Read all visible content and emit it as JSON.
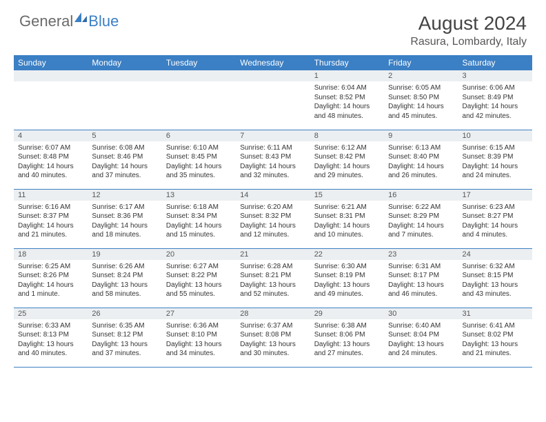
{
  "brand": {
    "part1": "General",
    "part2": "Blue"
  },
  "title": "August 2024",
  "location": "Rasura, Lombardy, Italy",
  "colors": {
    "header_bg": "#3b7fc4",
    "header_fg": "#ffffff",
    "daynum_bg": "#eceff1",
    "border": "#3b7fc4",
    "text": "#333333",
    "title_color": "#444444"
  },
  "weekdays": [
    "Sunday",
    "Monday",
    "Tuesday",
    "Wednesday",
    "Thursday",
    "Friday",
    "Saturday"
  ],
  "weeks": [
    [
      null,
      null,
      null,
      null,
      {
        "n": "1",
        "sr": "6:04 AM",
        "ss": "8:52 PM",
        "dl": "14 hours and 48 minutes."
      },
      {
        "n": "2",
        "sr": "6:05 AM",
        "ss": "8:50 PM",
        "dl": "14 hours and 45 minutes."
      },
      {
        "n": "3",
        "sr": "6:06 AM",
        "ss": "8:49 PM",
        "dl": "14 hours and 42 minutes."
      }
    ],
    [
      {
        "n": "4",
        "sr": "6:07 AM",
        "ss": "8:48 PM",
        "dl": "14 hours and 40 minutes."
      },
      {
        "n": "5",
        "sr": "6:08 AM",
        "ss": "8:46 PM",
        "dl": "14 hours and 37 minutes."
      },
      {
        "n": "6",
        "sr": "6:10 AM",
        "ss": "8:45 PM",
        "dl": "14 hours and 35 minutes."
      },
      {
        "n": "7",
        "sr": "6:11 AM",
        "ss": "8:43 PM",
        "dl": "14 hours and 32 minutes."
      },
      {
        "n": "8",
        "sr": "6:12 AM",
        "ss": "8:42 PM",
        "dl": "14 hours and 29 minutes."
      },
      {
        "n": "9",
        "sr": "6:13 AM",
        "ss": "8:40 PM",
        "dl": "14 hours and 26 minutes."
      },
      {
        "n": "10",
        "sr": "6:15 AM",
        "ss": "8:39 PM",
        "dl": "14 hours and 24 minutes."
      }
    ],
    [
      {
        "n": "11",
        "sr": "6:16 AM",
        "ss": "8:37 PM",
        "dl": "14 hours and 21 minutes."
      },
      {
        "n": "12",
        "sr": "6:17 AM",
        "ss": "8:36 PM",
        "dl": "14 hours and 18 minutes."
      },
      {
        "n": "13",
        "sr": "6:18 AM",
        "ss": "8:34 PM",
        "dl": "14 hours and 15 minutes."
      },
      {
        "n": "14",
        "sr": "6:20 AM",
        "ss": "8:32 PM",
        "dl": "14 hours and 12 minutes."
      },
      {
        "n": "15",
        "sr": "6:21 AM",
        "ss": "8:31 PM",
        "dl": "14 hours and 10 minutes."
      },
      {
        "n": "16",
        "sr": "6:22 AM",
        "ss": "8:29 PM",
        "dl": "14 hours and 7 minutes."
      },
      {
        "n": "17",
        "sr": "6:23 AM",
        "ss": "8:27 PM",
        "dl": "14 hours and 4 minutes."
      }
    ],
    [
      {
        "n": "18",
        "sr": "6:25 AM",
        "ss": "8:26 PM",
        "dl": "14 hours and 1 minute."
      },
      {
        "n": "19",
        "sr": "6:26 AM",
        "ss": "8:24 PM",
        "dl": "13 hours and 58 minutes."
      },
      {
        "n": "20",
        "sr": "6:27 AM",
        "ss": "8:22 PM",
        "dl": "13 hours and 55 minutes."
      },
      {
        "n": "21",
        "sr": "6:28 AM",
        "ss": "8:21 PM",
        "dl": "13 hours and 52 minutes."
      },
      {
        "n": "22",
        "sr": "6:30 AM",
        "ss": "8:19 PM",
        "dl": "13 hours and 49 minutes."
      },
      {
        "n": "23",
        "sr": "6:31 AM",
        "ss": "8:17 PM",
        "dl": "13 hours and 46 minutes."
      },
      {
        "n": "24",
        "sr": "6:32 AM",
        "ss": "8:15 PM",
        "dl": "13 hours and 43 minutes."
      }
    ],
    [
      {
        "n": "25",
        "sr": "6:33 AM",
        "ss": "8:13 PM",
        "dl": "13 hours and 40 minutes."
      },
      {
        "n": "26",
        "sr": "6:35 AM",
        "ss": "8:12 PM",
        "dl": "13 hours and 37 minutes."
      },
      {
        "n": "27",
        "sr": "6:36 AM",
        "ss": "8:10 PM",
        "dl": "13 hours and 34 minutes."
      },
      {
        "n": "28",
        "sr": "6:37 AM",
        "ss": "8:08 PM",
        "dl": "13 hours and 30 minutes."
      },
      {
        "n": "29",
        "sr": "6:38 AM",
        "ss": "8:06 PM",
        "dl": "13 hours and 27 minutes."
      },
      {
        "n": "30",
        "sr": "6:40 AM",
        "ss": "8:04 PM",
        "dl": "13 hours and 24 minutes."
      },
      {
        "n": "31",
        "sr": "6:41 AM",
        "ss": "8:02 PM",
        "dl": "13 hours and 21 minutes."
      }
    ]
  ],
  "labels": {
    "sunrise": "Sunrise: ",
    "sunset": "Sunset: ",
    "daylight": "Daylight: "
  }
}
